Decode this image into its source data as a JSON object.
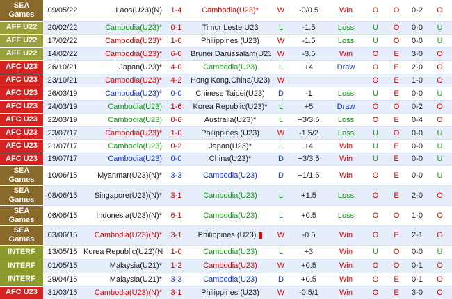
{
  "rows": [
    [
      "SEA Games",
      "09/05/22",
      "Laos(U23)(N)",
      "1-4",
      "Cambodia(U23)*",
      "W",
      "-0/0.5",
      "Win",
      "O",
      "O",
      "0-2",
      "O"
    ],
    [
      "AFF U22",
      "20/02/22",
      "Cambodia(U23)*",
      "0-1",
      "Timor Leste U23",
      "L",
      "-1.5",
      "Loss",
      "U",
      "O",
      "0-0",
      "U"
    ],
    [
      "AFF U22",
      "17/02/22",
      "Cambodia(U23)*",
      "1-0",
      "Philippines (U23)",
      "W",
      "-1.5",
      "Loss",
      "U",
      "O",
      "0-0",
      "U"
    ],
    [
      "AFF U22",
      "14/02/22",
      "Cambodia(U23)*",
      "6-0",
      "Brunei Darussalam(U23)",
      "W",
      "-3.5",
      "Win",
      "O",
      "E",
      "3-0",
      "O"
    ],
    [
      "AFC U23",
      "26/10/21",
      "Japan(U23)*",
      "4-0",
      "Cambodia(U23)",
      "L",
      "+4",
      "Draw",
      "O",
      "E",
      "2-0",
      "O"
    ],
    [
      "AFC U23",
      "23/10/21",
      "Cambodia(U23)*",
      "4-2",
      "Hong Kong,China(U23)",
      "W",
      null,
      null,
      "O",
      "E",
      "1-0",
      "O"
    ],
    [
      "AFC U23",
      "26/03/19",
      "Cambodia(U23)*",
      "0-0",
      "Chinese Taipei(U23)",
      "D",
      "-1",
      "Loss",
      "U",
      "E",
      "0-0",
      "U"
    ],
    [
      "AFC U23",
      "24/03/19",
      "Cambodia(U23)",
      "1-6",
      "Korea Republic(U23)*",
      "L",
      "+5",
      "Draw",
      "O",
      "O",
      "0-2",
      "O"
    ],
    [
      "AFC U23",
      "22/03/19",
      "Cambodia(U23)",
      "0-6",
      "Australia(U23)*",
      "L",
      "+3/3.5",
      "Loss",
      "O",
      "E",
      "0-4",
      "O"
    ],
    [
      "AFC U23",
      "23/07/17",
      "Cambodia(U23)*",
      "1-0",
      "Philippines (U23)",
      "W",
      "-1.5/2",
      "Loss",
      "U",
      "O",
      "0-0",
      "U"
    ],
    [
      "AFC U23",
      "21/07/17",
      "Cambodia(U23)",
      "0-2",
      "Japan(U23)*",
      "L",
      "+4",
      "Win",
      "U",
      "E",
      "0-0",
      "U"
    ],
    [
      "AFC U23",
      "19/07/17",
      "Cambodia(U23)",
      "0-0",
      "China(U23)*",
      "D",
      "+3/3.5",
      "Win",
      "U",
      "E",
      "0-0",
      "U"
    ],
    [
      "SEA Games",
      "10/06/15",
      "Myanmar(U23)(N)*",
      "3-3",
      "Cambodia(U23)",
      "D",
      "+1/1.5",
      "Win",
      "O",
      "E",
      "0-0",
      "U"
    ],
    [
      "SEA Games",
      "08/06/15",
      "Singapore(U23)(N)*",
      "3-1",
      "Cambodia(U23)",
      "L",
      "+1.5",
      "Loss",
      "O",
      "E",
      "2-0",
      "O"
    ],
    [
      "SEA Games",
      "06/06/15",
      "Indonesia(U23)(N)*",
      "6-1",
      "Cambodia(U23)",
      "L",
      "+0.5",
      "Loss",
      "O",
      "O",
      "1-0",
      "O"
    ],
    [
      "SEA Games",
      "03/06/15",
      "Cambodia(U23)(N)*",
      "3-1",
      "Philippines (U23)",
      "W",
      "-0.5",
      "Win",
      "O",
      "E",
      "2-1",
      "O"
    ],
    [
      "INTERF",
      "13/05/15",
      "Korea Republic(U22)(N)*",
      "1-0",
      "Cambodia(U23)",
      "L",
      "+3",
      "Win",
      "U",
      "O",
      "0-0",
      "U"
    ],
    [
      "INTERF",
      "01/05/15",
      "Malaysia(U21)*",
      "1-2",
      "Cambodia(U23)",
      "W",
      "+0.5",
      "Win",
      "O",
      "O",
      "0-1",
      "O"
    ],
    [
      "INTERF",
      "29/04/15",
      "Malaysia(U21)*",
      "3-3",
      "Cambodia(U23)",
      "D",
      "+0.5",
      "Win",
      "O",
      "E",
      "0-1",
      "O"
    ],
    [
      "AFC U23",
      "31/03/15",
      "Cambodia(U23)(N)*",
      "3-1",
      "Philippines (U23)",
      "W",
      "-0.5/1",
      "Win",
      "O",
      "E",
      "3-0",
      "O"
    ]
  ]
}
